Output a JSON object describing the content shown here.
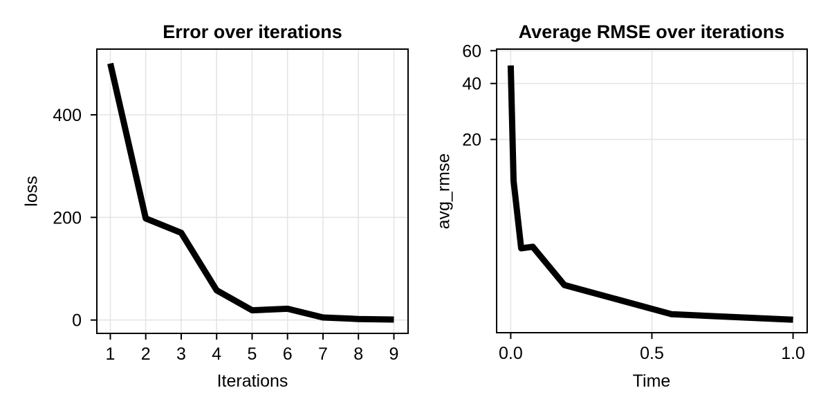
{
  "style": {
    "background": "#ffffff",
    "grid_color": "#e4e4e4",
    "axis_color": "#000000",
    "text_color": "#000000",
    "line_color": "#000000"
  },
  "chart_data": [
    {
      "type": "line",
      "title": "Error over iterations",
      "xlabel": "Iterations",
      "ylabel": "loss",
      "x": [
        1,
        2,
        3,
        4,
        5,
        6,
        7,
        8,
        9
      ],
      "y": [
        500,
        198,
        170,
        58,
        19,
        22,
        5,
        2,
        1
      ],
      "xticks": {
        "values": [
          1,
          2,
          3,
          4,
          5,
          6,
          7,
          8,
          9
        ],
        "labels": [
          "1",
          "2",
          "3",
          "4",
          "5",
          "6",
          "7",
          "8",
          "9"
        ]
      },
      "yticks": {
        "values": [
          0,
          200,
          400
        ],
        "labels": [
          "0",
          "200",
          "400"
        ]
      },
      "xlim": [
        0.62,
        9.4
      ],
      "ylim": [
        -26,
        528
      ],
      "xscale": "linear",
      "yscale": "linear",
      "grid": true,
      "legend": "none",
      "line_width": 9
    },
    {
      "type": "line",
      "title": "Average RMSE over iterations",
      "xlabel": "Time",
      "ylabel": "avg_rmse",
      "x": [
        0.0,
        0.01,
        0.037,
        0.078,
        0.19,
        0.57,
        1.0
      ],
      "y": [
        50,
        12,
        5.2,
        5.3,
        3.3,
        2.3,
        2.15
      ],
      "xticks": {
        "values": [
          0.0,
          0.5,
          1.0
        ],
        "labels": [
          "0.0",
          "0.5",
          "1.0"
        ]
      },
      "yticks": {
        "values": [
          20,
          40,
          60
        ],
        "labels": [
          "20",
          "40",
          "60"
        ]
      },
      "xlim": [
        -0.05,
        1.05
      ],
      "ylim": [
        1.83,
        61.2
      ],
      "xscale": "linear",
      "yscale": "log",
      "grid": true,
      "legend": "none",
      "line_width": 9
    }
  ]
}
